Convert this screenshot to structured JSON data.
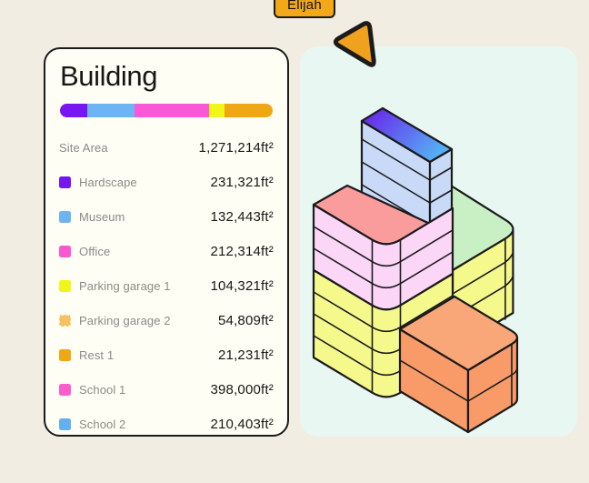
{
  "cursor": {
    "label": "Elijah",
    "color": "#F0A11E",
    "tag_color": "#F2A818"
  },
  "card": {
    "title": "Building"
  },
  "bar": {
    "segments": [
      {
        "name": "hardscape",
        "color": "#7716F2",
        "pct": 13
      },
      {
        "name": "museum",
        "color": "#6CB4F2",
        "pct": 22
      },
      {
        "name": "office",
        "color": "#F959D7",
        "pct": 35
      },
      {
        "name": "parking",
        "color": "#F0F617",
        "pct": 7.5
      },
      {
        "name": "rest",
        "color": "#F0A716",
        "pct": 22.5
      }
    ]
  },
  "legend": {
    "rows": [
      {
        "label": "Site Area",
        "value": "1,271,214ft²",
        "color": null
      },
      {
        "label": "Hardscape",
        "value": "231,321ft²",
        "color": "#7716F2"
      },
      {
        "label": "Museum",
        "value": "132,443ft²",
        "color": "#6CB4F2"
      },
      {
        "label": "Office",
        "value": "212,314ft²",
        "color": "#FA57D2"
      },
      {
        "label": "Parking garage 1",
        "value": "104,321ft²",
        "color": "#F0F617"
      },
      {
        "label": "Parking garage 2",
        "value": "54,809ft²",
        "color": "#F5C163",
        "dashed": true
      },
      {
        "label": "Rest 1",
        "value": "21,231ft²",
        "color": "#F0A716"
      },
      {
        "label": "School 1",
        "value": "398,000ft²",
        "color": "#FB5ECC"
      },
      {
        "label": "School 2",
        "value": "210,403ft²",
        "color": "#64AFF0"
      }
    ]
  },
  "building": {
    "colors": {
      "tower_side": "#C9DAF8",
      "tower_grad_start": "#6A1BEA",
      "tower_grad_end": "#55AFF4",
      "roof_red": "#FA9C9C",
      "wall_pink": "#FBD6F7",
      "roof_green": "#C9EFC4",
      "wall_yellow": "#F5F98C",
      "orange_top": "#F9A678",
      "orange_side": "#F89B68",
      "outline": "#1b1b1b"
    }
  }
}
